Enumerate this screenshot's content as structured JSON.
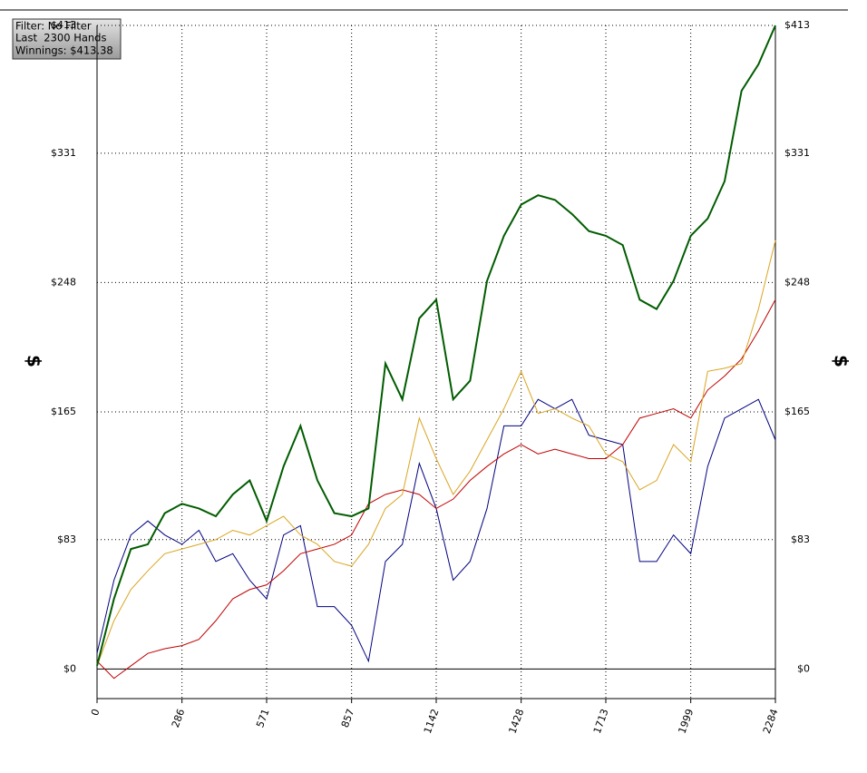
{
  "chart_data": {
    "type": "line",
    "annotations": [
      "Filter: No Filter",
      "Last  2300 Hands",
      "Winnings: $413.38"
    ],
    "ylabel": "$",
    "x": [
      0,
      57,
      114,
      171,
      228,
      286,
      343,
      400,
      457,
      514,
      571,
      628,
      685,
      742,
      799,
      857,
      914,
      971,
      1028,
      1085,
      1142,
      1199,
      1256,
      1313,
      1370,
      1428,
      1485,
      1542,
      1599,
      1656,
      1713,
      1770,
      1827,
      1884,
      1941,
      1999,
      2056,
      2113,
      2170,
      2227,
      2284
    ],
    "xlim": [
      0,
      2284
    ],
    "xticks": [
      0,
      286,
      571,
      857,
      1142,
      1428,
      1713,
      1999,
      2284
    ],
    "ylim": [
      -19,
      413
    ],
    "yticks": [
      {
        "value": 0,
        "label": "$0"
      },
      {
        "value": 83,
        "label": "$83"
      },
      {
        "value": 165,
        "label": "$165"
      },
      {
        "value": 248,
        "label": "$248"
      },
      {
        "value": 331,
        "label": "$331"
      },
      {
        "value": 413,
        "label": "$413"
      }
    ],
    "grid": true,
    "series": [
      {
        "color": "#005c00",
        "width": 2,
        "values": [
          2,
          45,
          77,
          80,
          100,
          106,
          103,
          98,
          112,
          121,
          95,
          130,
          156,
          121,
          100,
          98,
          103,
          196,
          173,
          225,
          237,
          173,
          185,
          249,
          278,
          298,
          304,
          301,
          292,
          281,
          278,
          272,
          237,
          231,
          249,
          278,
          289,
          313,
          371,
          388,
          413
        ]
      },
      {
        "color": "#daa520",
        "width": 1,
        "values": [
          2,
          31,
          51,
          63,
          74,
          77,
          80,
          83,
          89,
          86,
          92,
          98,
          86,
          80,
          69,
          66,
          80,
          103,
          112,
          161,
          135,
          112,
          127,
          147,
          167,
          191,
          164,
          167,
          161,
          156,
          138,
          133,
          115,
          121,
          144,
          133,
          191,
          193,
          196,
          231,
          275
        ]
      },
      {
        "color": "#c00000",
        "width": 1,
        "values": [
          5,
          -6,
          2,
          10,
          13,
          15,
          19,
          31,
          45,
          51,
          54,
          63,
          74,
          77,
          80,
          86,
          106,
          112,
          115,
          112,
          103,
          109,
          121,
          130,
          138,
          144,
          138,
          141,
          138,
          135,
          135,
          144,
          161,
          164,
          167,
          161,
          179,
          188,
          199,
          217,
          237
        ]
      },
      {
        "color": "#000080",
        "width": 1,
        "values": [
          10,
          57,
          86,
          95,
          86,
          80,
          89,
          69,
          74,
          57,
          45,
          86,
          92,
          40,
          40,
          28,
          5,
          69,
          80,
          132,
          103,
          57,
          69,
          103,
          156,
          156,
          173,
          167,
          173,
          150,
          147,
          144,
          69,
          69,
          86,
          74,
          130,
          161,
          167,
          173,
          147
        ]
      }
    ]
  }
}
